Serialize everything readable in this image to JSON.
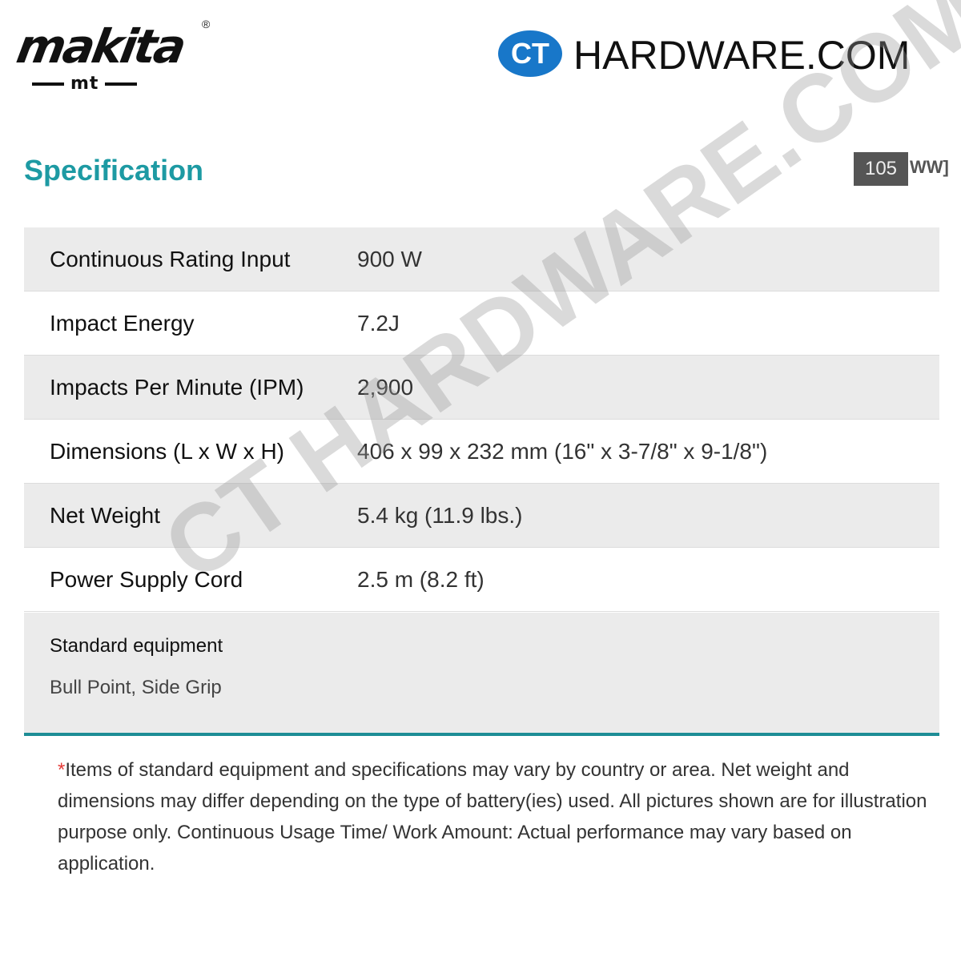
{
  "header": {
    "brand_logo": "makita mt",
    "partner_logo_mark": "CT",
    "partner_logo_text": "HARDWARE.COM",
    "registered": "®"
  },
  "section": {
    "title": "Specification",
    "model_badge": "105"
  },
  "specs": [
    {
      "label": "Continuous Rating Input",
      "value": "900 W"
    },
    {
      "label": "Impact Energy",
      "value": "7.2J"
    },
    {
      "label": "Impacts Per Minute (IPM)",
      "value": "2,900"
    },
    {
      "label": "Dimensions (L x W x H)",
      "value": "406 x 99 x 232 mm (16\" x 3-7/8\" x 9-1/8\")"
    },
    {
      "label": "Net Weight",
      "value": "5.4 kg (11.9 lbs.)"
    },
    {
      "label": "Power Supply Cord",
      "value": "2.5 m (8.2 ft)"
    }
  ],
  "standard_equipment": {
    "label": "Standard equipment",
    "value": "Bull Point, Side Grip"
  },
  "note": {
    "asterisk": "*",
    "text": "Items of standard equipment and specifications may vary by country or area. Net weight and dimensions may differ depending on the type of battery(ies) used. All pictures shown are for illustration purpose only. Continuous Usage Time/ Work Amount: Actual performance may vary based on application."
  },
  "watermark": "CT HARDWARE.COM",
  "colors": {
    "accent": "#1d9aa3",
    "divider": "#1d8d96",
    "ct_blue": "#1877c9"
  }
}
